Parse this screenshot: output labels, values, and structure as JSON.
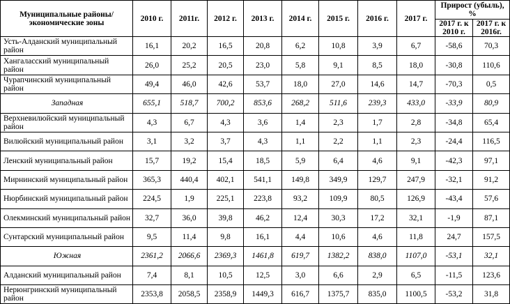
{
  "header": {
    "name_col": "Муниципальные районы/ экономические зоны",
    "years": [
      "2010 г.",
      "2011г.",
      "2012 г.",
      "2013 г.",
      "2014 г.",
      "2015 г.",
      "2016 г.",
      "2017 г."
    ],
    "growth": "Прирост (убыль), %",
    "growth_sub": [
      "2017 г. к 2010 г.",
      "2017 г. к 2016г."
    ]
  },
  "rows": [
    {
      "name": "Усть-Алданский муниципальный район",
      "zone": false,
      "values": [
        "16,1",
        "20,2",
        "16,5",
        "20,8",
        "6,2",
        "10,8",
        "3,9",
        "6,7",
        "-58,6",
        "70,3"
      ]
    },
    {
      "name": "Хангаласский муниципальный район",
      "zone": false,
      "values": [
        "26,0",
        "25,2",
        "20,5",
        "23,0",
        "5,8",
        "9,1",
        "8,5",
        "18,0",
        "-30,8",
        "110,6"
      ]
    },
    {
      "name": "Чурапчинский муниципальный район",
      "zone": false,
      "values": [
        "49,4",
        "46,0",
        "42,6",
        "53,7",
        "18,0",
        "27,0",
        "14,6",
        "14,7",
        "-70,3",
        "0,5"
      ]
    },
    {
      "name": "Западная",
      "zone": true,
      "values": [
        "655,1",
        "518,7",
        "700,2",
        "853,6",
        "268,2",
        "511,6",
        "239,3",
        "433,0",
        "-33,9",
        "80,9"
      ]
    },
    {
      "name": "Верхневилюйский муниципальный район",
      "zone": false,
      "values": [
        "4,3",
        "6,7",
        "4,3",
        "3,6",
        "1,4",
        "2,3",
        "1,7",
        "2,8",
        "-34,8",
        "65,4"
      ]
    },
    {
      "name": "Вилюйский муниципальный район",
      "zone": false,
      "values": [
        "3,1",
        "3,2",
        "3,7",
        "4,3",
        "1,1",
        "2,2",
        "1,1",
        "2,3",
        "-24,4",
        "116,5"
      ]
    },
    {
      "name": "Ленский муниципальный район",
      "zone": false,
      "values": [
        "15,7",
        "19,2",
        "15,4",
        "18,5",
        "5,9",
        "6,4",
        "4,6",
        "9,1",
        "-42,3",
        "97,1"
      ]
    },
    {
      "name": "Мирнинский муниципальный район",
      "zone": false,
      "values": [
        "365,3",
        "440,4",
        "402,1",
        "541,1",
        "149,8",
        "349,9",
        "129,7",
        "247,9",
        "-32,1",
        "91,2"
      ]
    },
    {
      "name": "Нюрбинский муниципальный район",
      "zone": false,
      "values": [
        "224,5",
        "1,9",
        "225,1",
        "223,8",
        "93,2",
        "109,9",
        "80,5",
        "126,9",
        "-43,4",
        "57,6"
      ]
    },
    {
      "name": "Олекминский муниципальный район",
      "zone": false,
      "values": [
        "32,7",
        "36,0",
        "39,8",
        "46,2",
        "12,4",
        "30,3",
        "17,2",
        "32,1",
        "-1,9",
        "87,1"
      ]
    },
    {
      "name": "Сунтарский муниципальный район",
      "zone": false,
      "values": [
        "9,5",
        "11,4",
        "9,8",
        "16,1",
        "4,4",
        "10,6",
        "4,6",
        "11,8",
        "24,7",
        "157,5"
      ]
    },
    {
      "name": "Южная",
      "zone": true,
      "values": [
        "2361,2",
        "2066,6",
        "2369,3",
        "1461,8",
        "619,7",
        "1382,2",
        "838,0",
        "1107,0",
        "-53,1",
        "32,1"
      ]
    },
    {
      "name": "Алданский муниципальный район",
      "zone": false,
      "values": [
        "7,4",
        "8,1",
        "10,5",
        "12,5",
        "3,0",
        "6,6",
        "2,9",
        "6,5",
        "-11,5",
        "123,6"
      ]
    },
    {
      "name": "Нерюнгринский муниципальный район",
      "zone": false,
      "values": [
        "2353,8",
        "2058,5",
        "2358,9",
        "1449,3",
        "616,7",
        "1375,7",
        "835,0",
        "1100,5",
        "-53,2",
        "31,8"
      ]
    }
  ]
}
